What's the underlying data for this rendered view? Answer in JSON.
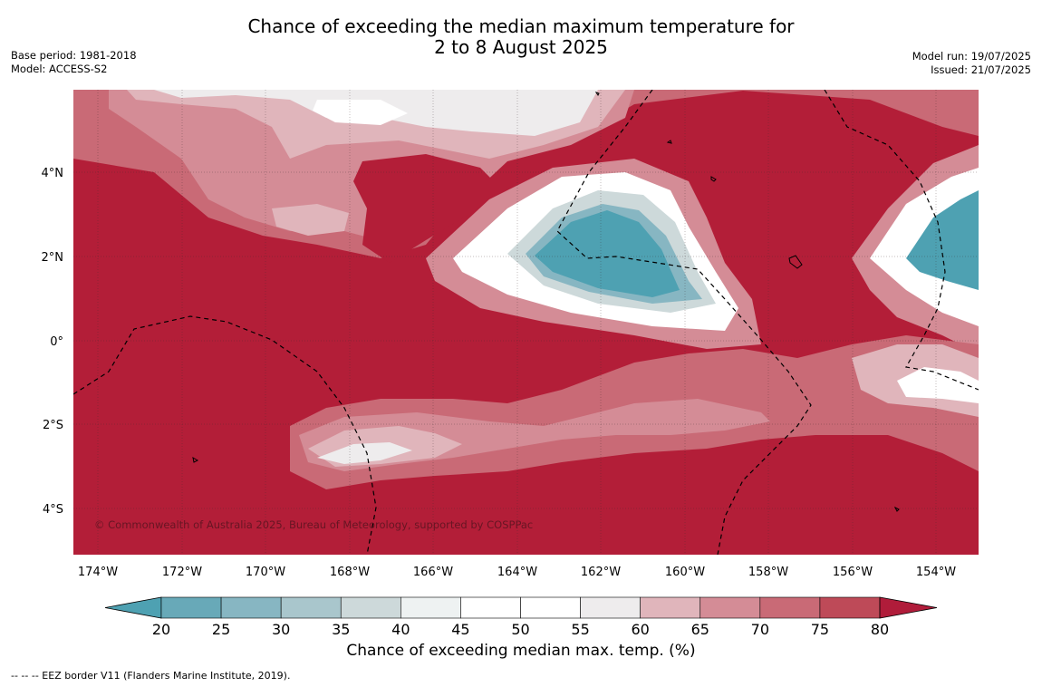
{
  "title": {
    "line1": "Chance of exceeding the median maximum temperature for",
    "line2": "2 to 8 August 2025"
  },
  "meta_left": {
    "base_period": "Base period: 1981-2018",
    "model": "Model: ACCESS-S2"
  },
  "meta_right": {
    "model_run": "Model run: 19/07/2025",
    "issued": "Issued: 21/07/2025"
  },
  "map": {
    "lat_labels": [
      "4°N",
      "2°N",
      "0°",
      "2°S",
      "4°S"
    ],
    "lon_labels": [
      "174°W",
      "172°W",
      "170°W",
      "168°W",
      "166°W",
      "164°W",
      "162°W",
      "160°W",
      "158°W",
      "156°W",
      "154°W"
    ],
    "copyright": "© Commonwealth of Australia 2025, Bureau of Meteorology, supported by COSPPac",
    "background_color": "#b31e38"
  },
  "colorbar": {
    "ticks": [
      "20",
      "25",
      "30",
      "35",
      "40",
      "45",
      "50",
      "55",
      "60",
      "65",
      "70",
      "75",
      "80"
    ],
    "colors": [
      "#68a9b8",
      "#87b6c2",
      "#a9c6cc",
      "#cdd9da",
      "#eef2f2",
      "#ffffff",
      "#ffffff",
      "#eeeced",
      "#e0b5bb",
      "#d48c96",
      "#c96a76",
      "#be4a58"
    ],
    "under_color": "#4ea1b2",
    "over_color": "#b01c3a",
    "label": "Chance of exceeding median max. temp. (%)"
  },
  "footnote": "--  --  -- EEZ border V11 (Flanders Marine Institute, 2019)."
}
